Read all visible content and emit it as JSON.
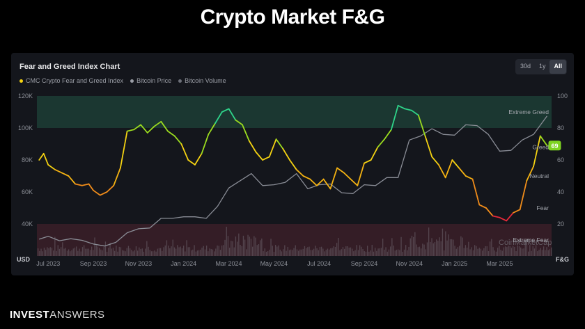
{
  "page": {
    "title": "Crypto Market F&G"
  },
  "card": {
    "title": "Fear and Greed Index Chart",
    "ranges": [
      {
        "label": "30d",
        "active": false
      },
      {
        "label": "1y",
        "active": false
      },
      {
        "label": "All",
        "active": true
      }
    ]
  },
  "brand": {
    "part1": "INVEST",
    "part2": "ANSWERS"
  },
  "watermark": "CoinMarketCap",
  "colors": {
    "greed_zone": "#1c3d35",
    "fear_zone": "#3a1f28",
    "price_line": "#8a8d96",
    "volume_bar": "#5a4c56",
    "current_badge": "#7ed321"
  },
  "chart_data": {
    "type": "line",
    "legend": [
      {
        "name": "CMC Crypto Fear and Greed Index",
        "color": "#f5d312"
      },
      {
        "name": "Bitcoin Price",
        "color": "#9a9da6"
      },
      {
        "name": "Bitcoin Volume",
        "color": "#6d7079"
      }
    ],
    "x_ticks": [
      "Jul 2023",
      "Sep 2023",
      "Nov 2023",
      "Jan 2024",
      "Mar 2024",
      "May 2024",
      "Jul 2024",
      "Sep 2024",
      "Nov 2024",
      "Jan 2025",
      "Mar 2025"
    ],
    "x_tick_months": [
      6,
      8,
      10,
      12,
      14,
      16,
      18,
      20,
      22,
      24,
      26
    ],
    "xlim_months": [
      5.5,
      28.3
    ],
    "y_left": {
      "unit": "USD",
      "ticks": [
        "40K",
        "60K",
        "80K",
        "100K",
        "120K"
      ],
      "values": [
        40000,
        60000,
        80000,
        100000,
        120000
      ],
      "ylim": [
        20000,
        120000
      ]
    },
    "y_right": {
      "unit": "F&G",
      "ticks": [
        "20",
        "40",
        "60",
        "80",
        "100"
      ],
      "values": [
        20,
        40,
        60,
        80,
        100
      ],
      "ylim": [
        0,
        100
      ]
    },
    "zones": [
      {
        "label": "Extreme Greed",
        "at": 90
      },
      {
        "label": "Greed",
        "at": 68
      },
      {
        "label": "Neutral",
        "at": 50
      },
      {
        "label": "Fear",
        "at": 30
      },
      {
        "label": "Extreme Fear",
        "at": 10
      }
    ],
    "current_value": "69",
    "fear_greed": {
      "x_months": [
        5.6,
        5.8,
        6.0,
        6.3,
        6.6,
        6.9,
        7.2,
        7.5,
        7.8,
        8.0,
        8.3,
        8.6,
        8.9,
        9.2,
        9.5,
        9.8,
        10.1,
        10.4,
        10.7,
        11.0,
        11.3,
        11.6,
        11.9,
        12.2,
        12.5,
        12.8,
        13.1,
        13.4,
        13.7,
        14.0,
        14.3,
        14.6,
        14.9,
        15.2,
        15.5,
        15.8,
        16.1,
        16.4,
        16.7,
        17.0,
        17.3,
        17.6,
        17.9,
        18.2,
        18.5,
        18.8,
        19.1,
        19.4,
        19.7,
        20.0,
        20.3,
        20.6,
        20.9,
        21.2,
        21.5,
        21.8,
        22.1,
        22.4,
        22.7,
        23.0,
        23.3,
        23.6,
        23.9,
        24.2,
        24.5,
        24.8,
        25.1,
        25.4,
        25.7,
        26.0,
        26.3,
        26.6,
        26.9,
        27.2,
        27.5,
        27.8,
        28.1
      ],
      "values": [
        60,
        64,
        57,
        54,
        52,
        50,
        45,
        44,
        45,
        41,
        38,
        40,
        44,
        55,
        78,
        79,
        82,
        77,
        81,
        84,
        78,
        75,
        70,
        60,
        57,
        64,
        76,
        83,
        90,
        92,
        85,
        82,
        72,
        65,
        60,
        62,
        73,
        67,
        60,
        54,
        50,
        48,
        44,
        48,
        42,
        55,
        52,
        48,
        44,
        58,
        60,
        68,
        73,
        79,
        94,
        92,
        91,
        88,
        75,
        62,
        57,
        49,
        60,
        55,
        50,
        48,
        32,
        30,
        25,
        24,
        22,
        27,
        29,
        47,
        56,
        75,
        69
      ]
    },
    "btc_price": {
      "x_months": [
        5.6,
        6.0,
        6.5,
        7.0,
        7.5,
        8.0,
        8.5,
        9.0,
        9.5,
        10.0,
        10.5,
        11.0,
        11.5,
        12.0,
        12.5,
        13.0,
        13.5,
        14.0,
        14.5,
        15.0,
        15.5,
        16.0,
        16.5,
        17.0,
        17.5,
        18.0,
        18.5,
        19.0,
        19.5,
        20.0,
        20.5,
        21.0,
        21.5,
        22.0,
        22.5,
        23.0,
        23.5,
        24.0,
        24.5,
        25.0,
        25.5,
        26.0,
        26.5,
        27.0,
        27.5,
        28.1
      ],
      "values": [
        30500,
        30800,
        29500,
        29300,
        29800,
        26000,
        26200,
        27000,
        34500,
        35500,
        37500,
        42000,
        43500,
        43000,
        44500,
        42000,
        51000,
        61000,
        67000,
        70000,
        64000,
        63000,
        66000,
        70000,
        62000,
        63000,
        65000,
        58000,
        59000,
        63000,
        64000,
        67500,
        69000,
        91000,
        95000,
        98000,
        96000,
        94000,
        102000,
        100000,
        96000,
        84000,
        86000,
        91000,
        96000,
        106000
      ]
    }
  }
}
